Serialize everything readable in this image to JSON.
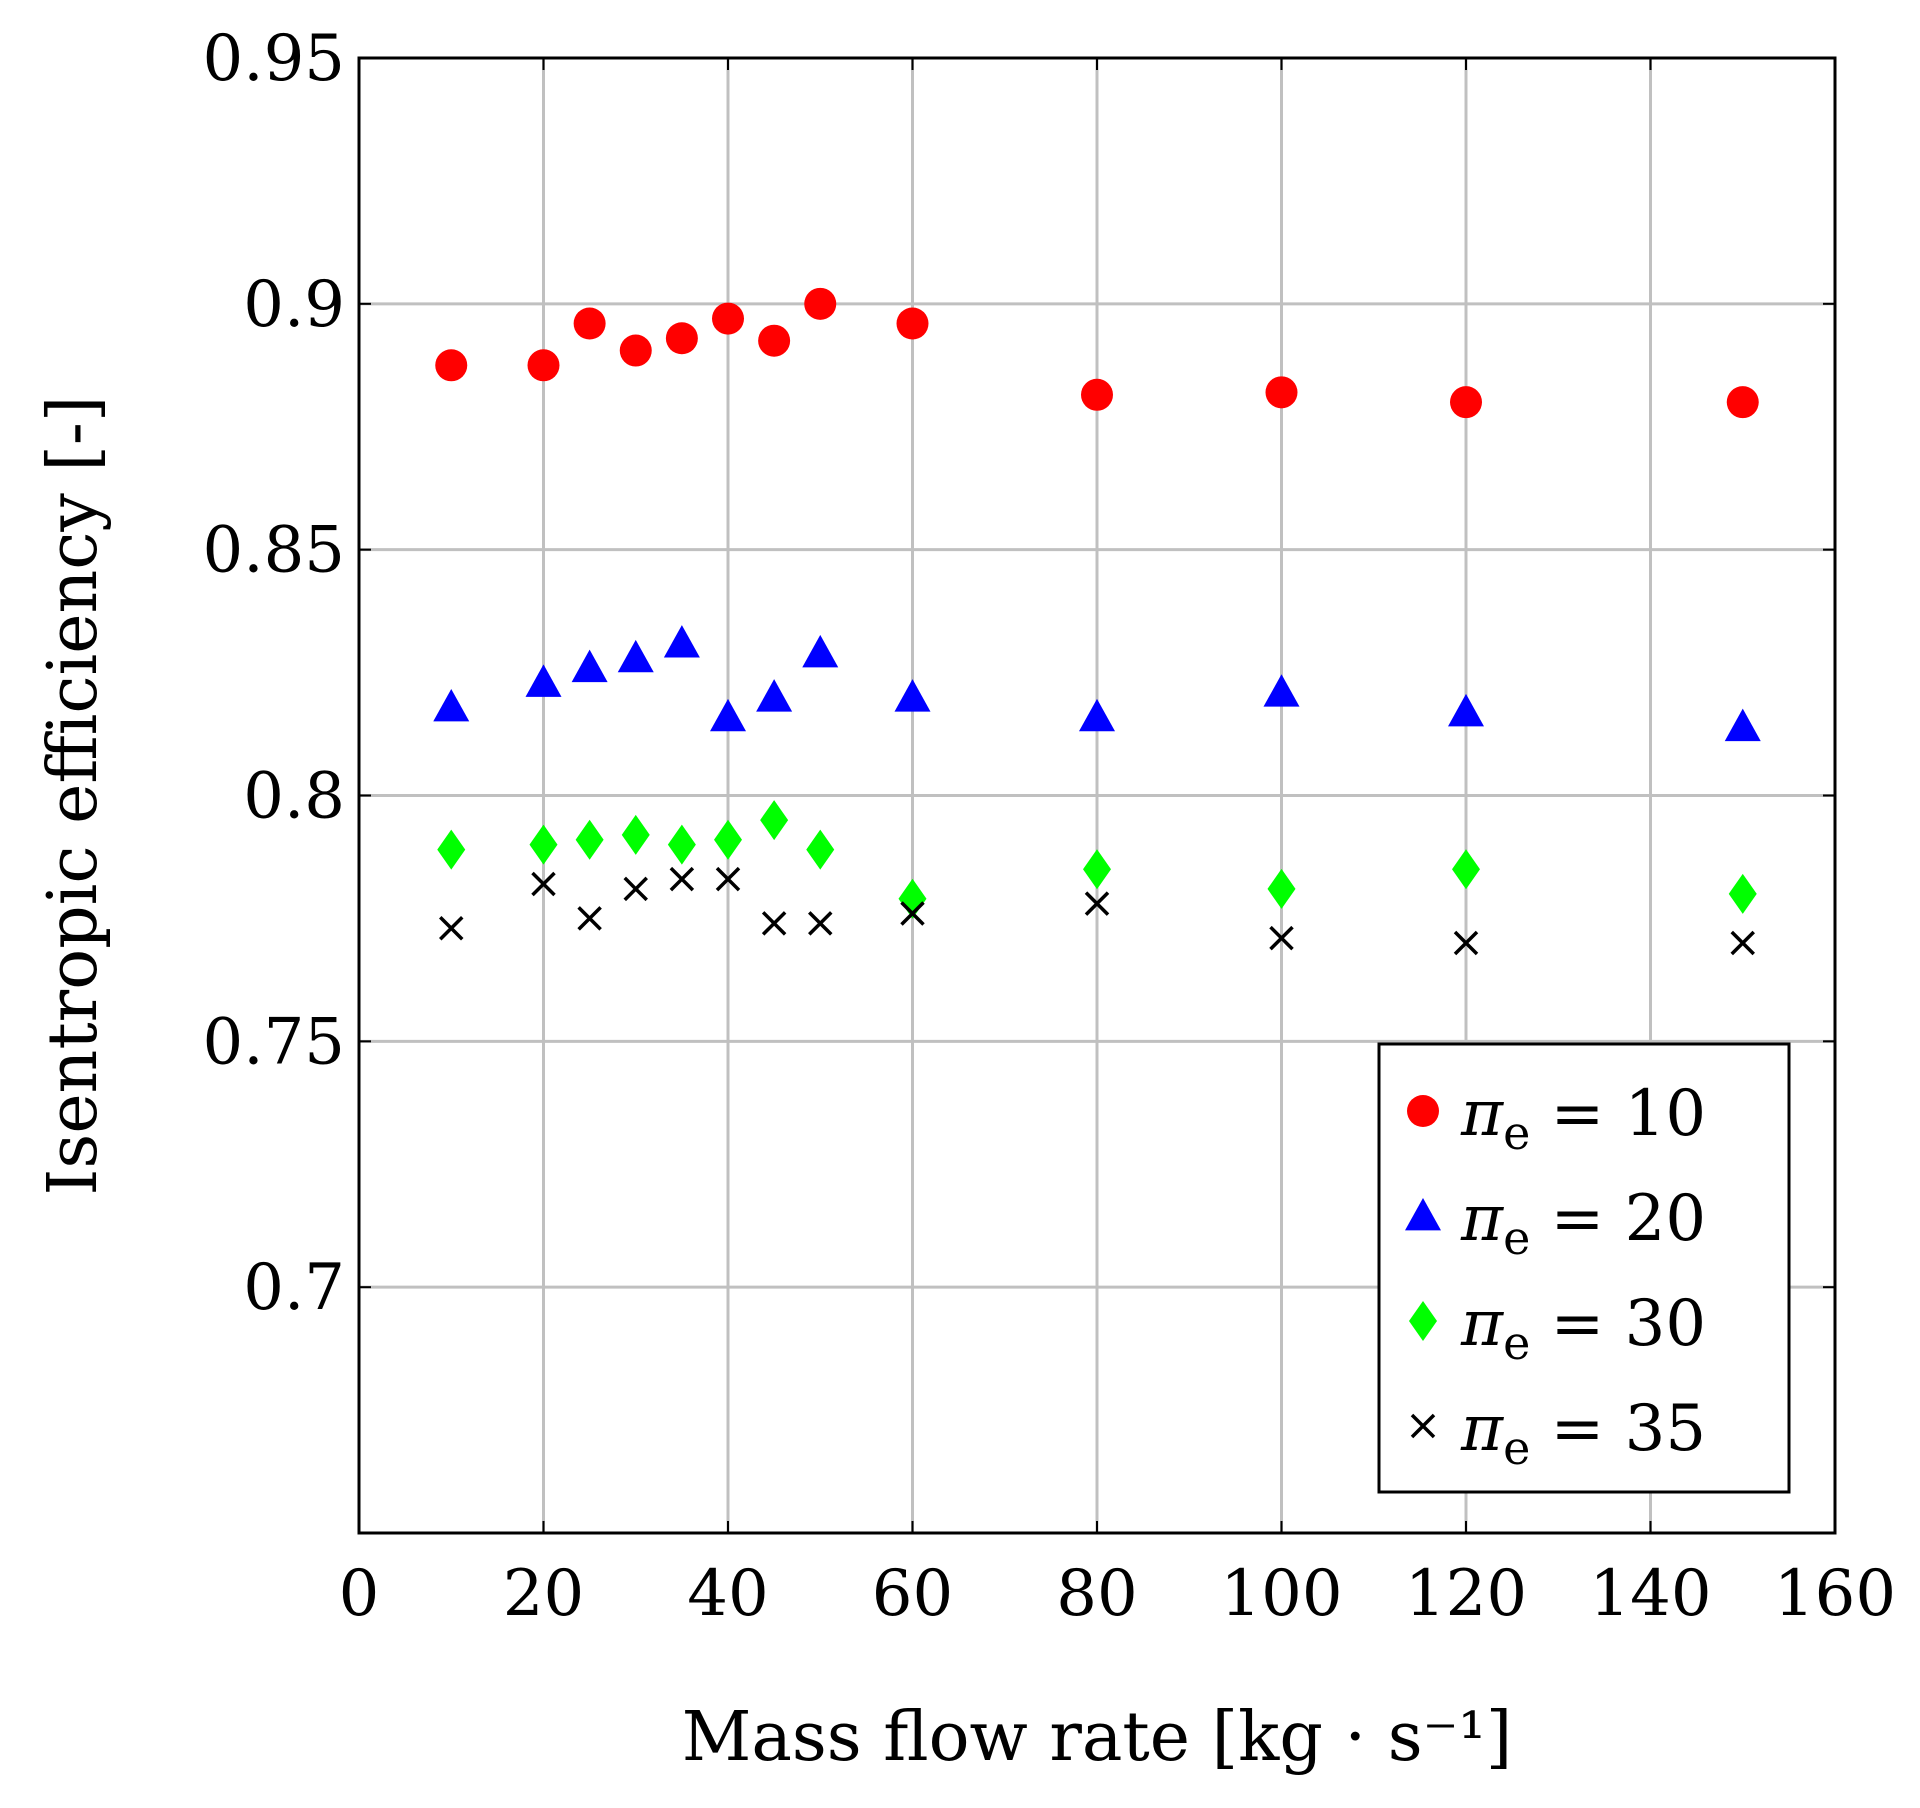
{
  "chart_data": {
    "type": "scatter",
    "title": "",
    "xlabel": "Mass flow rate [kg · s⁻¹]",
    "ylabel": "Isentropic efficiency [-]",
    "xlim": [
      0,
      160
    ],
    "ylim": [
      0.65,
      0.95
    ],
    "grid": true,
    "legend_position": "bottom-right",
    "x_ticks": [
      0,
      20,
      40,
      60,
      80,
      100,
      120,
      140,
      160
    ],
    "x_tick_labels": [
      "0",
      "20",
      "40",
      "60",
      "80",
      "100",
      "120",
      "140",
      "160"
    ],
    "y_ticks": [
      0.7,
      0.75,
      0.8,
      0.85,
      0.9,
      0.95
    ],
    "y_tick_labels": [
      "0.7",
      "0.75",
      "0.8",
      "0.85",
      "0.9",
      "0.95"
    ],
    "x": [
      10,
      20,
      25,
      30,
      35,
      40,
      45,
      50,
      60,
      80,
      100,
      120,
      150
    ],
    "series": [
      {
        "name": "πe = 10",
        "symbol": "π",
        "subscript": "e",
        "equals_text": " = 10",
        "marker": "circle",
        "color": "#ff0000",
        "values": [
          0.8875,
          0.8875,
          0.896,
          0.8905,
          0.893,
          0.897,
          0.8925,
          0.9,
          0.896,
          0.8815,
          0.882,
          0.88,
          0.88
        ]
      },
      {
        "name": "πe = 20",
        "symbol": "π",
        "subscript": "e",
        "equals_text": " = 20",
        "marker": "triangle",
        "color": "#0000ff",
        "values": [
          0.818,
          0.823,
          0.826,
          0.828,
          0.831,
          0.816,
          0.82,
          0.829,
          0.82,
          0.816,
          0.821,
          0.817,
          0.814
        ]
      },
      {
        "name": "πe = 30",
        "symbol": "π",
        "subscript": "e",
        "equals_text": " = 30",
        "marker": "diamond",
        "color": "#00ff00",
        "values": [
          0.789,
          0.79,
          0.791,
          0.792,
          0.79,
          0.791,
          0.795,
          0.789,
          0.779,
          0.785,
          0.781,
          0.785,
          0.78
        ]
      },
      {
        "name": "πe = 35",
        "symbol": "π",
        "subscript": "e",
        "equals_text": " = 35",
        "marker": "cross",
        "color": "#000000",
        "values": [
          0.773,
          0.782,
          0.775,
          0.781,
          0.783,
          0.783,
          0.774,
          0.774,
          0.776,
          0.778,
          0.771,
          0.77,
          0.77
        ]
      }
    ]
  }
}
